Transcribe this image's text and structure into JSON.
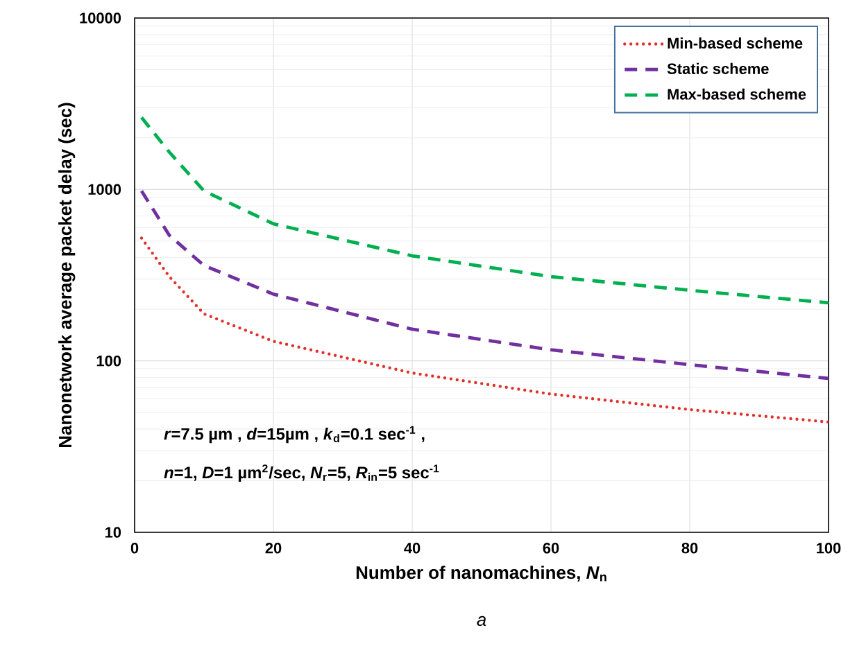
{
  "chart_data": {
    "type": "line",
    "xlabel": "Number of nanomachines, *N*$_{n}$",
    "ylabel": "Nanonetwork average packet delay (sec)",
    "x": [
      1,
      5,
      10,
      20,
      40,
      60,
      80,
      100
    ],
    "series": [
      {
        "name": "Min-based scheme",
        "color": "#e0302a",
        "line_style": "dotted",
        "values": [
          520,
          310,
          188,
          130,
          85,
          64,
          52,
          44
        ]
      },
      {
        "name": "Static scheme",
        "color": "#7030a0",
        "line_style": "dashed",
        "values": [
          980,
          540,
          360,
          245,
          153,
          116,
          95,
          79
        ]
      },
      {
        "name": "Max-based scheme",
        "color": "#00b050",
        "line_style": "dashed",
        "values": [
          2630,
          1650,
          980,
          630,
          410,
          310,
          258,
          218
        ]
      }
    ],
    "xlim": [
      0,
      100
    ],
    "xticks": [
      0,
      20,
      40,
      60,
      80,
      100
    ],
    "ylim": [
      10,
      10000
    ],
    "yticks": [
      10,
      100,
      1000,
      10000
    ],
    "log": "y",
    "grid": true,
    "legend": "top right",
    "marker": "none",
    "annotations": [
      "*r*=7.5 µm , *d*=15µm , *k*$_{d}$=0.1 sec$^{-1}$ ,",
      "*n*=1, *D*=1 µm$^{2}$/sec, *N*$_{r}$=5, *R*$_{in}$=5 sec$^{-1}$",
      "*a*"
    ]
  }
}
